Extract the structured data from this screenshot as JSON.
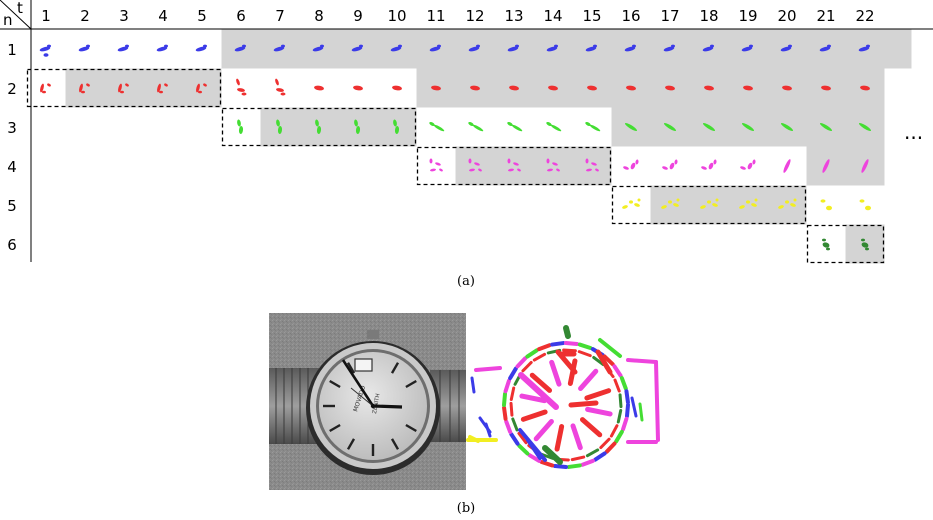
{
  "panel_a": {
    "corner_row_label": "n",
    "corner_col_label": "t",
    "columns": [
      "1",
      "2",
      "3",
      "4",
      "5",
      "6",
      "7",
      "8",
      "9",
      "10",
      "11",
      "12",
      "13",
      "14",
      "15",
      "16",
      "17",
      "18",
      "19",
      "20",
      "21",
      "22"
    ],
    "rows": [
      "1",
      "2",
      "3",
      "4",
      "5",
      "6"
    ],
    "continuation": "...",
    "caption": "(a)",
    "colors": {
      "row1": "#3b3be8",
      "row2": "#ee3030",
      "row3": "#44dd33",
      "row4": "#ee44dd",
      "row5": "#f2ee22",
      "row6": "#338833",
      "shade": "#d4d4d4"
    }
  },
  "panel_b": {
    "caption": "(b)",
    "photo_subject": "wristwatch",
    "dial_text_1": "MOVADO",
    "dial_text_2": "ZENITH"
  }
}
